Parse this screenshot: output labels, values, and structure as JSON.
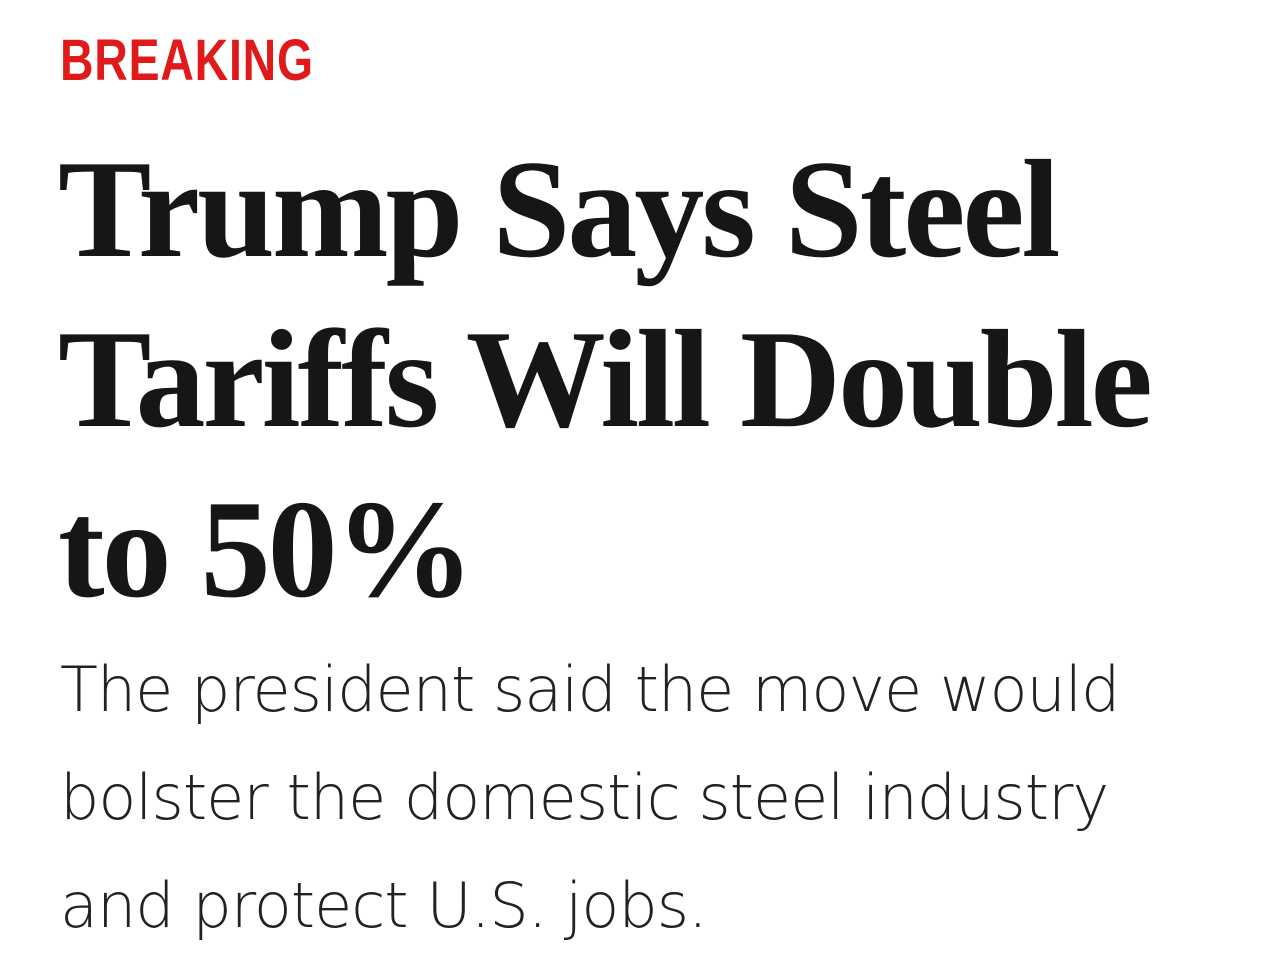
{
  "label": "BREAKING",
  "headline": {
    "lines": [
      "Trump Says Steel",
      "Tariffs Will Double",
      "to 50%"
    ]
  },
  "dek": {
    "lines": [
      "The president said the move would",
      "bolster the domestic steel industry",
      "and protect U.S. jobs."
    ]
  }
}
